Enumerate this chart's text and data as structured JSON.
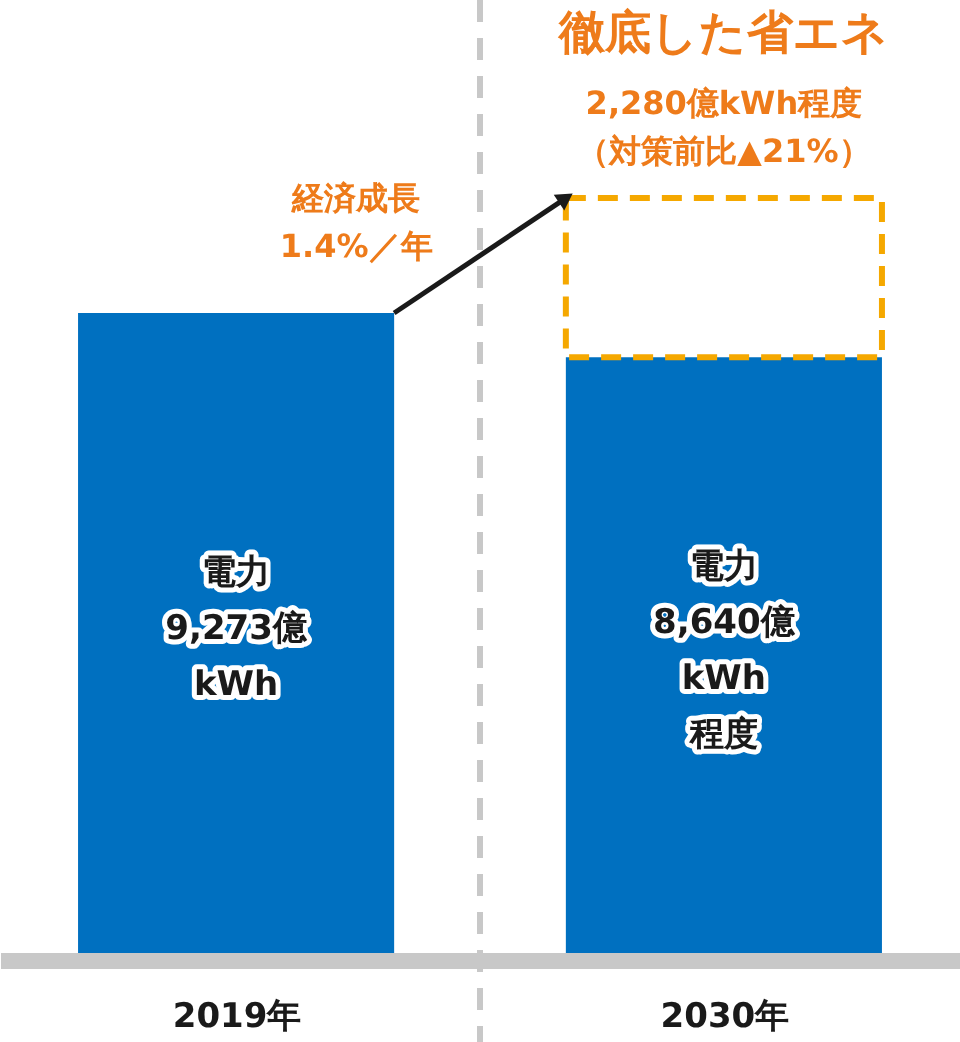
{
  "chart_data": {
    "type": "bar",
    "stacked": true,
    "categories": [
      "2019年",
      "2030年"
    ],
    "series": [
      {
        "color": "#0070c0",
        "values": [
          9273,
          8640
        ],
        "value_labels": [
          "電力\n9,273億\nkWh",
          "電力\n8,640億\nkWh\n程度"
        ]
      },
      {
        "name": "徹底した省エネ",
        "color": "#f5a800",
        "line_style": "dashed",
        "values": [
          null,
          2280
        ],
        "value_labels": [
          null,
          "2,280億kWh程度（対策前比▲21%）"
        ]
      }
    ],
    "annotations": [
      "経済成長\n1.4%／年"
    ],
    "grid": "x"
  }
}
